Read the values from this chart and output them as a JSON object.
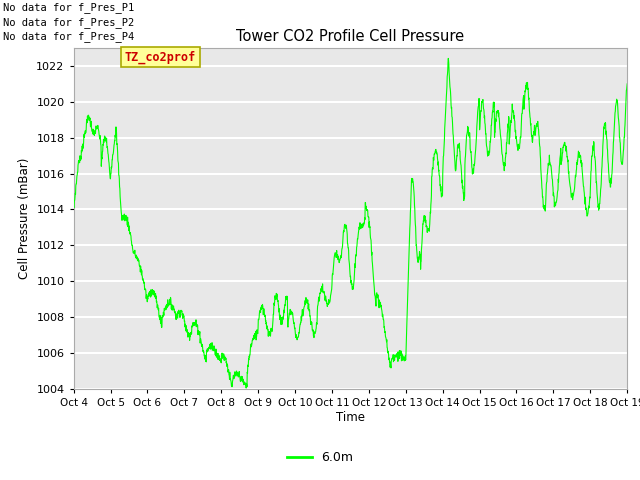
{
  "title": "Tower CO2 Profile Cell Pressure",
  "ylabel": "Cell Pressure (mBar)",
  "xlabel": "Time",
  "legend_label": "6.0m",
  "line_color": "#00ff00",
  "background_color": "#ffffff",
  "plot_bg_color": "#e8e8e8",
  "ylim": [
    1004,
    1023
  ],
  "yticks": [
    1004,
    1006,
    1008,
    1010,
    1012,
    1014,
    1016,
    1018,
    1020,
    1022
  ],
  "xtick_labels": [
    "Oct 4",
    "Oct 5",
    "Oct 6",
    "Oct 7",
    "Oct 8",
    "Oct 9",
    "Oct 10",
    "Oct 11",
    "Oct 12",
    "Oct 13",
    "Oct 14",
    "Oct 15",
    "Oct 16",
    "Oct 17",
    "Oct 18",
    "Oct 19"
  ],
  "no_data_texts": [
    "No data for f_Pres_P1",
    "No data for f_Pres_P2",
    "No data for f_Pres_P4"
  ],
  "legend_box_color": "#ffff99",
  "legend_text_color": "#cc0000",
  "annotation_border_color": "#aaaa00",
  "grid_color": "#ffffff",
  "spine_color": "#aaaaaa"
}
